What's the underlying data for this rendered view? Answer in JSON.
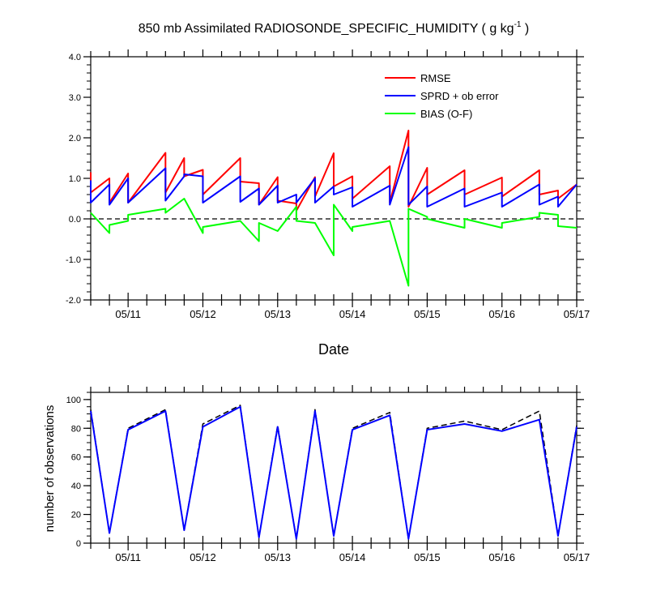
{
  "chart_data": [
    {
      "type": "line",
      "title": "850 mb Assimilated RADIOSONDE_SPECIFIC_HUMIDITY ( g kg",
      "title_sup": "-1",
      "title_end": " )",
      "xlabel": "Date",
      "ylabel": "",
      "xlim": [
        10.5,
        17.0
      ],
      "ylim": [
        -2.0,
        4.0
      ],
      "x_tick_labels": [
        "05/11",
        "05/12",
        "05/13",
        "05/14",
        "05/15",
        "05/16",
        "05/17"
      ],
      "y_tick_labels": [
        "4.0",
        "3.0",
        "2.0",
        "1.0",
        "0.0",
        "-1.0",
        "-2.0"
      ],
      "grid": false,
      "zero_line": "dashed",
      "legend_position": "top-right",
      "series": [
        {
          "name": "RMSE",
          "color": "#ff0000",
          "x": [
            10.5,
            10.5,
            10.75,
            10.75,
            11.0,
            11.0,
            11.5,
            11.5,
            11.75,
            11.75,
            12.0,
            12.0,
            12.5,
            12.5,
            12.75,
            12.75,
            13.0,
            13.0,
            13.25,
            13.25,
            13.5,
            13.5,
            13.75,
            13.75,
            14.0,
            14.0,
            14.5,
            14.5,
            14.75,
            14.75,
            15.0,
            15.0,
            15.5,
            15.5,
            16.0,
            16.0,
            16.5,
            16.5,
            16.75,
            16.75,
            17.0
          ],
          "y": [
            1.15,
            0.65,
            1.0,
            0.4,
            1.12,
            0.4,
            1.63,
            0.65,
            1.5,
            1.05,
            1.21,
            0.6,
            1.5,
            0.92,
            0.88,
            0.35,
            1.03,
            0.45,
            0.38,
            0.2,
            1.03,
            0.55,
            1.62,
            0.8,
            1.05,
            0.5,
            1.3,
            0.4,
            2.18,
            0.3,
            1.26,
            0.6,
            1.2,
            0.6,
            1.02,
            0.55,
            1.2,
            0.6,
            0.7,
            0.5,
            0.85
          ]
        },
        {
          "name": "SPRD + ob error",
          "color": "#0000ff",
          "x": [
            10.5,
            10.5,
            10.75,
            10.75,
            11.0,
            11.0,
            11.5,
            11.5,
            11.75,
            11.75,
            12.0,
            12.0,
            12.5,
            12.5,
            12.75,
            12.75,
            13.0,
            13.0,
            13.25,
            13.25,
            13.5,
            13.5,
            13.75,
            13.75,
            14.0,
            14.0,
            14.5,
            14.5,
            14.75,
            14.75,
            15.0,
            15.0,
            15.5,
            15.5,
            16.0,
            16.0,
            16.5,
            16.5,
            16.75,
            16.75,
            17.0
          ],
          "y": [
            0.95,
            0.4,
            0.85,
            0.35,
            1.0,
            0.4,
            1.25,
            0.45,
            1.05,
            1.1,
            1.05,
            0.4,
            1.05,
            0.42,
            0.75,
            0.35,
            0.82,
            0.4,
            0.6,
            0.4,
            1.0,
            0.4,
            0.8,
            0.6,
            0.78,
            0.3,
            0.82,
            0.35,
            1.77,
            0.35,
            0.8,
            0.3,
            0.75,
            0.3,
            0.65,
            0.3,
            0.85,
            0.35,
            0.55,
            0.3,
            0.85
          ]
        },
        {
          "name": "BIAS (O-F)",
          "color": "#00ff00",
          "x": [
            10.5,
            10.75,
            10.75,
            11.0,
            11.0,
            11.5,
            11.5,
            11.75,
            12.0,
            12.0,
            12.5,
            12.75,
            12.75,
            13.0,
            13.25,
            13.25,
            13.5,
            13.75,
            13.75,
            14.0,
            14.0,
            14.5,
            14.75,
            14.75,
            15.0,
            15.0,
            15.5,
            15.5,
            16.0,
            16.0,
            16.5,
            16.5,
            16.75,
            16.75,
            17.0
          ],
          "y": [
            0.15,
            -0.35,
            -0.15,
            -0.05,
            0.1,
            0.25,
            0.15,
            0.5,
            -0.35,
            -0.2,
            -0.05,
            -0.55,
            -0.1,
            -0.3,
            0.3,
            -0.05,
            -0.1,
            -0.9,
            0.35,
            -0.3,
            -0.2,
            -0.05,
            -1.65,
            0.25,
            0.05,
            0.0,
            -0.22,
            0.0,
            -0.22,
            -0.1,
            0.05,
            0.15,
            0.1,
            -0.18,
            -0.22
          ]
        }
      ]
    },
    {
      "type": "line",
      "title": "",
      "xlabel": "",
      "ylabel": "number of observations",
      "xlim": [
        10.5,
        17.0
      ],
      "ylim": [
        0,
        105
      ],
      "x_tick_labels": [
        "05/11",
        "05/12",
        "05/13",
        "05/14",
        "05/15",
        "05/16",
        "05/17"
      ],
      "y_tick_labels": [
        "100",
        "80",
        "60",
        "40",
        "20",
        "0"
      ],
      "grid": false,
      "series": [
        {
          "name": "",
          "style": "dashed",
          "color": "#000000",
          "x": [
            10.5,
            10.75,
            11.0,
            11.5,
            11.75,
            12.0,
            12.5,
            12.75,
            13.0,
            13.25,
            13.5,
            13.75,
            14.0,
            14.5,
            14.75,
            15.0,
            15.5,
            16.0,
            16.5,
            16.75,
            17.0
          ],
          "y": [
            93,
            7,
            80,
            93,
            9,
            83,
            96,
            4,
            82,
            3,
            93,
            5,
            80,
            91,
            3,
            80,
            85,
            79,
            92,
            5,
            82
          ]
        },
        {
          "name": "",
          "style": "solid",
          "color": "#0000ff",
          "x": [
            10.5,
            10.75,
            11.0,
            11.5,
            11.75,
            12.0,
            12.5,
            12.75,
            13.0,
            13.25,
            13.5,
            13.75,
            14.0,
            14.5,
            14.75,
            15.0,
            15.5,
            16.0,
            16.5,
            16.75,
            17.0
          ],
          "y": [
            92,
            7,
            79,
            92,
            9,
            81,
            95,
            4,
            81,
            3,
            92,
            5,
            79,
            89,
            3,
            79,
            83,
            78,
            86,
            5,
            81
          ]
        }
      ]
    }
  ]
}
